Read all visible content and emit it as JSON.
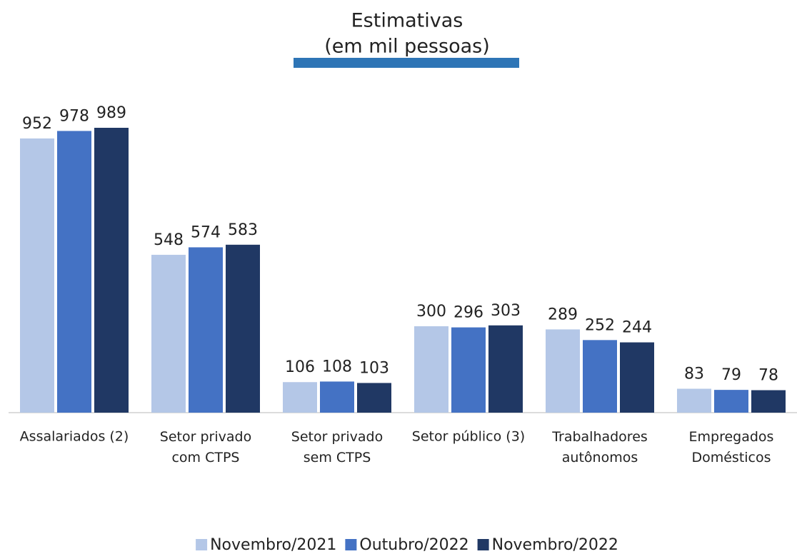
{
  "chart_data": {
    "type": "bar",
    "title": [
      "Estimativas",
      "(em mil pessoas)"
    ],
    "categories": [
      "Assalariados (2)",
      "Setor privado\ncom CTPS",
      "Setor privado\nsem CTPS",
      "Setor público (3)",
      "Trabalhadores\nautônomos",
      "Empregados\nDomésticos"
    ],
    "series": [
      {
        "name": "Novembro/2021",
        "color": "#b4c7e7",
        "values": [
          952,
          548,
          106,
          300,
          289,
          83
        ]
      },
      {
        "name": "Outubro/2022",
        "color": "#4472c4",
        "values": [
          978,
          574,
          108,
          296,
          252,
          79
        ]
      },
      {
        "name": "Novembro/2022",
        "color": "#203864",
        "values": [
          989,
          583,
          103,
          303,
          244,
          78
        ]
      }
    ],
    "legend": "bottom"
  }
}
